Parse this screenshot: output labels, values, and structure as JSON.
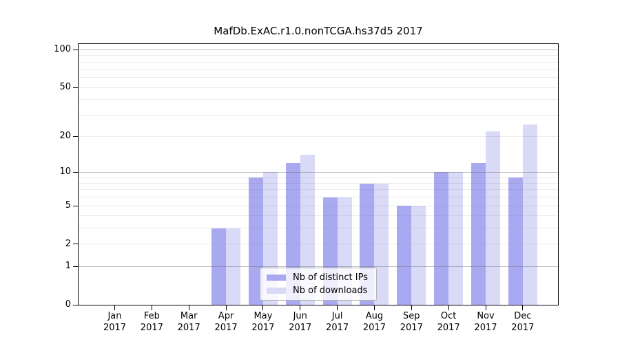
{
  "title": "MafDb.ExAC.r1.0.nonTCGA.hs37d5 2017",
  "chart_data": {
    "type": "bar",
    "title": "MafDb.ExAC.r1.0.nonTCGA.hs37d5 2017",
    "categories": [
      "Jan",
      "Feb",
      "Mar",
      "Apr",
      "May",
      "Jun",
      "Jul",
      "Aug",
      "Sep",
      "Oct",
      "Nov",
      "Dec"
    ],
    "category_year": "2017",
    "series": [
      {
        "name": "Nb of distinct IPs",
        "color": "#a9a9f1",
        "values": [
          0,
          0,
          0,
          3,
          9,
          12,
          6,
          8,
          5,
          10,
          12,
          9
        ]
      },
      {
        "name": "Nb of downloads",
        "color": "#d9d9f8",
        "values": [
          0,
          0,
          0,
          3,
          10,
          14,
          6,
          8,
          5,
          10,
          22,
          25
        ]
      }
    ],
    "xlabel": "",
    "ylabel": "",
    "yscale": "log1p",
    "ylim": [
      0,
      111
    ],
    "yticks": [
      0,
      1,
      2,
      5,
      10,
      20,
      50,
      100
    ],
    "ytick_labels": [
      "0",
      "1",
      "2",
      "5",
      "10",
      "20",
      "50",
      "100"
    ],
    "major_gridlines": [
      1,
      10,
      100
    ],
    "minor_gridlines": [
      2,
      3,
      4,
      5,
      6,
      7,
      8,
      9,
      20,
      30,
      40,
      50,
      60,
      70,
      80,
      90
    ],
    "grid": "both",
    "legend_position": "lower center"
  },
  "colors": {
    "figure_bg": "#ffffff",
    "spine": "#000000",
    "bar_distinct_ips": "#a9a9f1",
    "bar_downloads": "#d9d9f8",
    "major_grid": "#bdbdbd",
    "minor_grid": "#ececec",
    "legend_border": "#b3b3b3",
    "legend_bg": "rgba(255,255,255,0.8)"
  }
}
